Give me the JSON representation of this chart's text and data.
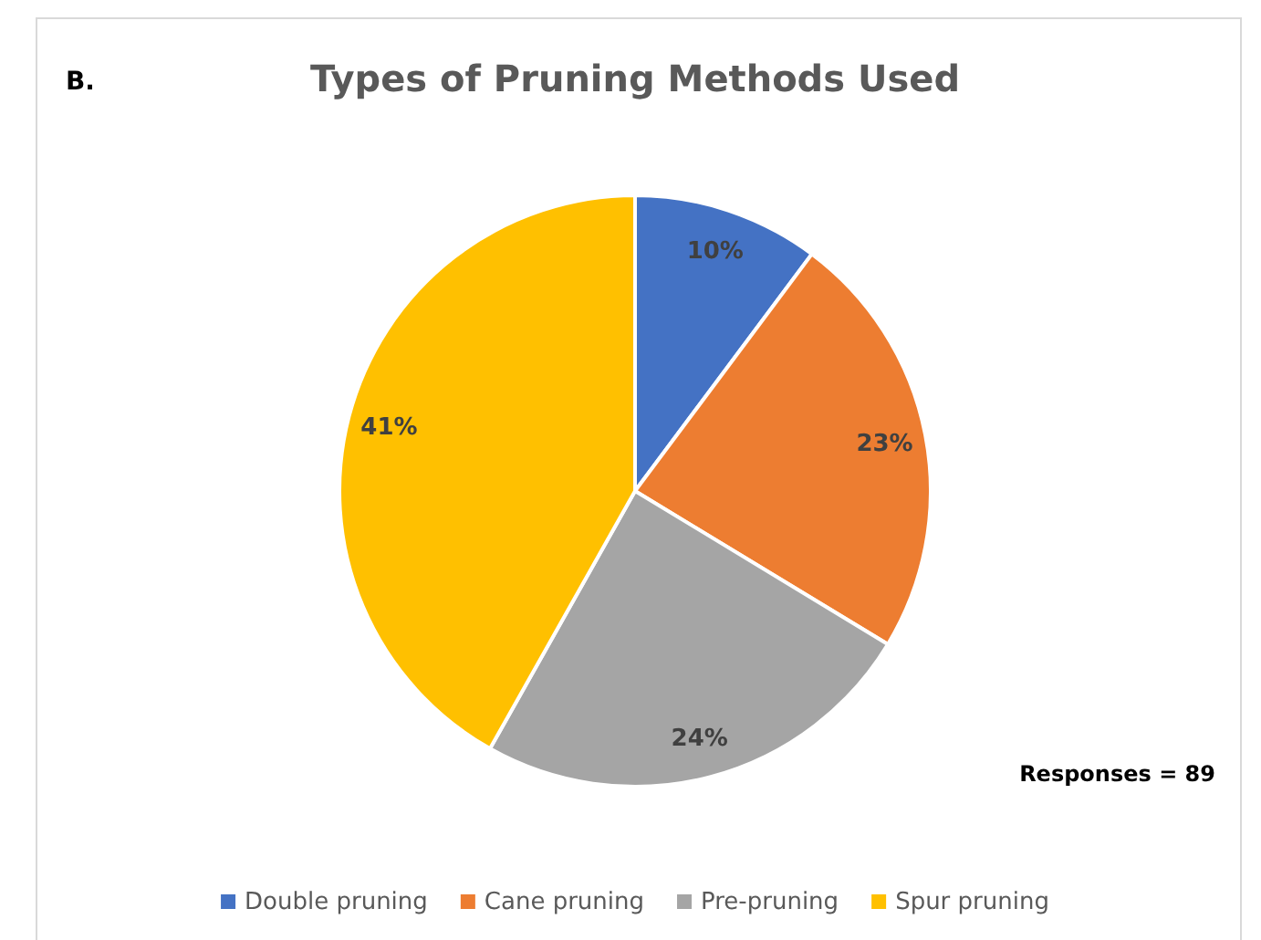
{
  "chart_data": {
    "type": "pie",
    "title": "Types of Pruning Methods Used",
    "categories": [
      "Double pruning",
      "Cane pruning",
      "Pre-pruning",
      "Spur pruning"
    ],
    "values": [
      10,
      23,
      24,
      41
    ],
    "colors": [
      "#4472c4",
      "#ed7d31",
      "#a5a5a5",
      "#ffc000"
    ],
    "value_labels": [
      "10%",
      "23%",
      "24%",
      "41%"
    ],
    "legend": "bottom",
    "annotations": [
      "B.",
      "Responses = 89"
    ]
  }
}
